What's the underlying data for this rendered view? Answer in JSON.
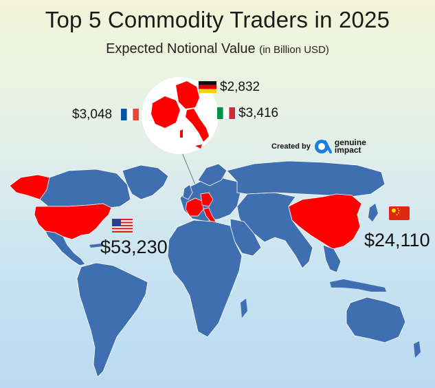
{
  "header": {
    "title": "Top 5 Commodity Traders in 2025",
    "subtitle_main": "Expected Notional Value",
    "subtitle_unit": "(in Billion USD)"
  },
  "credit": {
    "prefix": "Created by",
    "brand_line1": "genuine",
    "brand_line2": "impact"
  },
  "colors": {
    "highlight": "#ff0000",
    "land": "#3f6fb0",
    "brand": "#1b7fe0"
  },
  "countries": [
    {
      "name": "United States",
      "flag": "us-flag-icon",
      "value": "$53,230"
    },
    {
      "name": "China",
      "flag": "china-flag-icon",
      "value": "$24,110"
    },
    {
      "name": "Italy",
      "flag": "italy-flag-icon",
      "value": "$3,416"
    },
    {
      "name": "France",
      "flag": "france-flag-icon",
      "value": "$3,048"
    },
    {
      "name": "Germany",
      "flag": "germany-flag-icon",
      "value": "$2,832"
    }
  ]
}
